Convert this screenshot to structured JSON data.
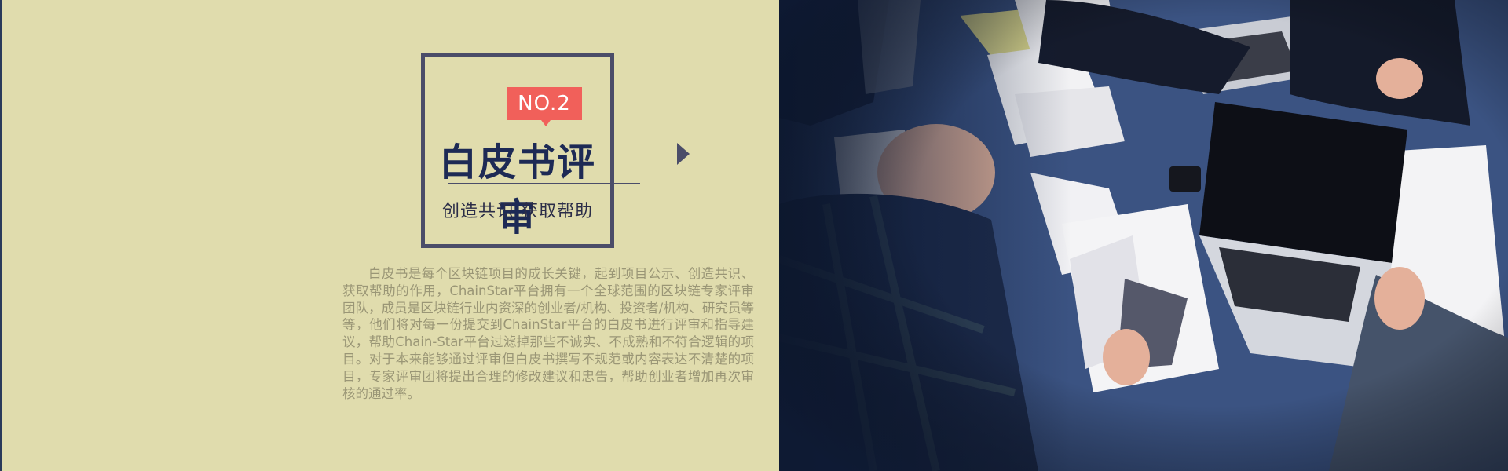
{
  "badge": {
    "label": "NO.2",
    "color": "#f1605a"
  },
  "title": "白皮书评审",
  "subtitle": "创造共识 获取帮助",
  "body": "白皮书是每个区块链项目的成长关键，起到项目公示、创造共识、获取帮助的作用，ChainStar平台拥有一个全球范围的区块链专家评审团队，成员是区块链行业内资深的创业者/机构、投资者/机构、研究员等等，他们将对每一份提交到ChainStar平台的白皮书进行评审和指导建议，帮助Chain-Star平台过滤掉那些不诚实、不成熟和不符合逻辑的项目。对于本来能够通过评审但白皮书撰写不规范或内容表达不清楚的项目，专家评审团将提出合理的修改建议和忠告，帮助创业者增加再次审核的通过率。",
  "colors": {
    "background": "#e0dcad",
    "accent_dark": "#4b4d69",
    "title": "#1d2a55",
    "body_text": "#9a9676"
  },
  "icons": {
    "arrow": "triangle-right-icon"
  }
}
